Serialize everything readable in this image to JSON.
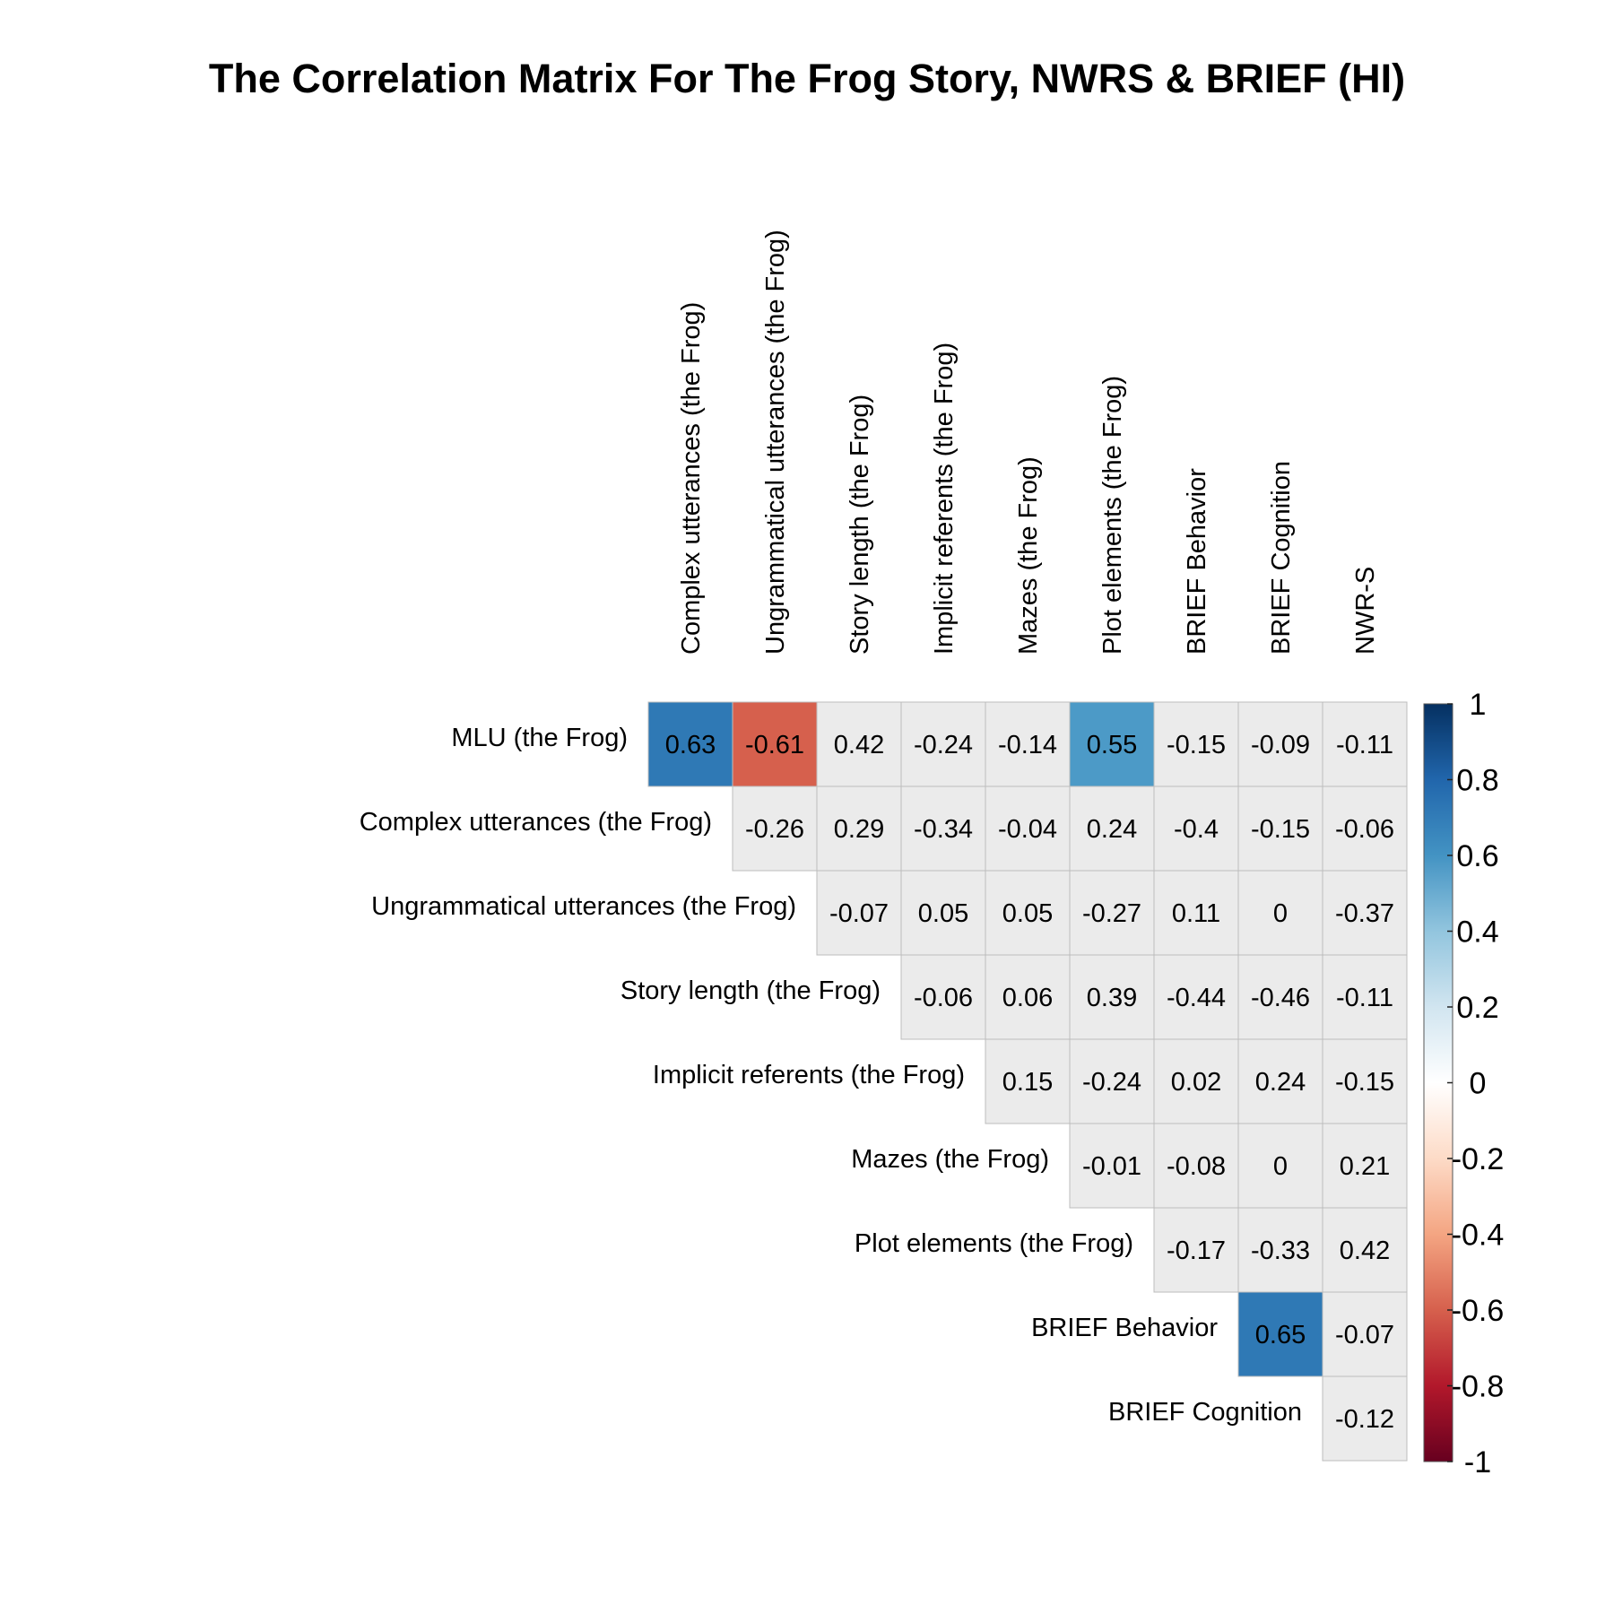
{
  "chart_data": {
    "type": "heatmap",
    "title": "The Correlation Matrix For The Frog Story, NWRS & BRIEF (HI)",
    "row_labels": [
      "MLU (the Frog)",
      "Complex utterances (the Frog)",
      "Ungrammatical utterances (the Frog)",
      "Story length (the Frog)",
      "Implicit referents (the Frog)",
      "Mazes (the Frog)",
      "Plot elements (the Frog)",
      "BRIEF Behavior",
      "BRIEF Cognition"
    ],
    "column_labels": [
      "Complex utterances (the Frog)",
      "Ungrammatical utterances (the Frog)",
      "Story length (the Frog)",
      "Implicit referents (the Frog)",
      "Mazes (the Frog)",
      "Plot elements (the Frog)",
      "BRIEF Behavior",
      "BRIEF Cognition",
      "NWR-S"
    ],
    "values": [
      [
        0.63,
        -0.61,
        0.42,
        -0.24,
        -0.14,
        0.55,
        -0.15,
        -0.09,
        -0.11
      ],
      [
        null,
        -0.26,
        0.29,
        -0.34,
        -0.04,
        0.24,
        -0.4,
        -0.15,
        -0.06
      ],
      [
        null,
        null,
        -0.07,
        0.05,
        0.05,
        -0.27,
        0.11,
        0,
        -0.37
      ],
      [
        null,
        null,
        null,
        -0.06,
        0.06,
        0.39,
        -0.44,
        -0.46,
        -0.11
      ],
      [
        null,
        null,
        null,
        null,
        0.15,
        -0.24,
        0.02,
        0.24,
        -0.15
      ],
      [
        null,
        null,
        null,
        null,
        null,
        -0.01,
        -0.08,
        0,
        0.21
      ],
      [
        null,
        null,
        null,
        null,
        null,
        null,
        -0.17,
        -0.33,
        0.42
      ],
      [
        null,
        null,
        null,
        null,
        null,
        null,
        null,
        0.65,
        -0.07
      ],
      [
        null,
        null,
        null,
        null,
        null,
        null,
        null,
        null,
        -0.12
      ]
    ],
    "highlighted_cells": [
      {
        "row": 0,
        "col": 0,
        "color": "#2f79b5"
      },
      {
        "row": 0,
        "col": 1,
        "color": "#d6604d"
      },
      {
        "row": 0,
        "col": 5,
        "color": "#4c9ac7"
      },
      {
        "row": 7,
        "col": 7,
        "color": "#2f79b5"
      }
    ],
    "neutral_cell_color": "#ebebeb",
    "colorbar": {
      "range": [
        -1,
        1
      ],
      "ticks": [
        "1",
        "0.8",
        "0.6",
        "0.4",
        "0.2",
        "0",
        "-0.2",
        "-0.4",
        "-0.6",
        "-0.8",
        "-1"
      ],
      "colors": [
        "#67001f",
        "#b2182b",
        "#d6604d",
        "#f4a582",
        "#fddbc7",
        "#ffffff",
        "#d1e5f0",
        "#92c5de",
        "#4393c3",
        "#2166ac",
        "#053061"
      ],
      "placement": "right"
    }
  }
}
